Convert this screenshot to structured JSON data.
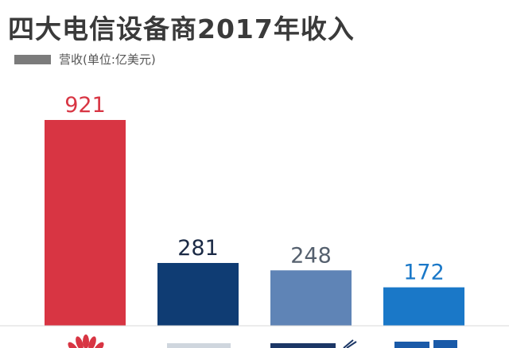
{
  "title": "四大电信设备商2017年收入",
  "legend": {
    "label": "营收(单位:亿美元)",
    "color": "#7b7b7b"
  },
  "chart_data": {
    "type": "bar",
    "title": "四大电信设备商2017年收入",
    "series": [
      {
        "name": "营收(单位:亿美元)",
        "values": [
          921,
          281,
          248,
          172
        ]
      }
    ],
    "categories": [
      "",
      "",
      "",
      ""
    ],
    "value_labels": [
      "921",
      "281",
      "248",
      "172"
    ],
    "bar_colors": [
      "#d83543",
      "#0f3c73",
      "#5f84b6",
      "#1a78c8"
    ],
    "label_colors": [
      "#d83543",
      "#1b2a45",
      "#55606e",
      "#1a78c8"
    ],
    "ylim": [
      0,
      921
    ],
    "grid": false,
    "legend_position": "top-left"
  }
}
